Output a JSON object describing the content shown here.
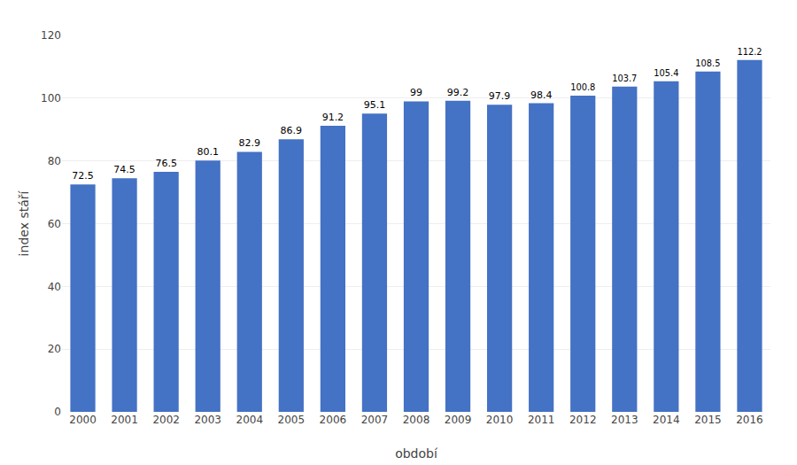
{
  "chart_data": {
    "type": "bar",
    "categories": [
      "2000",
      "2001",
      "2002",
      "2003",
      "2004",
      "2005",
      "2006",
      "2007",
      "2008",
      "2009",
      "2010",
      "2011",
      "2012",
      "2013",
      "2014",
      "2015",
      "2016"
    ],
    "values": [
      72.5,
      74.5,
      76.5,
      80.1,
      82.9,
      86.9,
      91.2,
      95.1,
      99,
      99.2,
      97.9,
      98.4,
      100.8,
      103.7,
      105.4,
      108.5,
      112.2
    ],
    "color": "#4472C4",
    "xlabel": "období",
    "ylabel": "index stáří",
    "ylim": [
      0,
      120
    ],
    "yticks": [
      0,
      20,
      40,
      60,
      80,
      100,
      120
    ],
    "grid": true,
    "data_labels": true
  }
}
